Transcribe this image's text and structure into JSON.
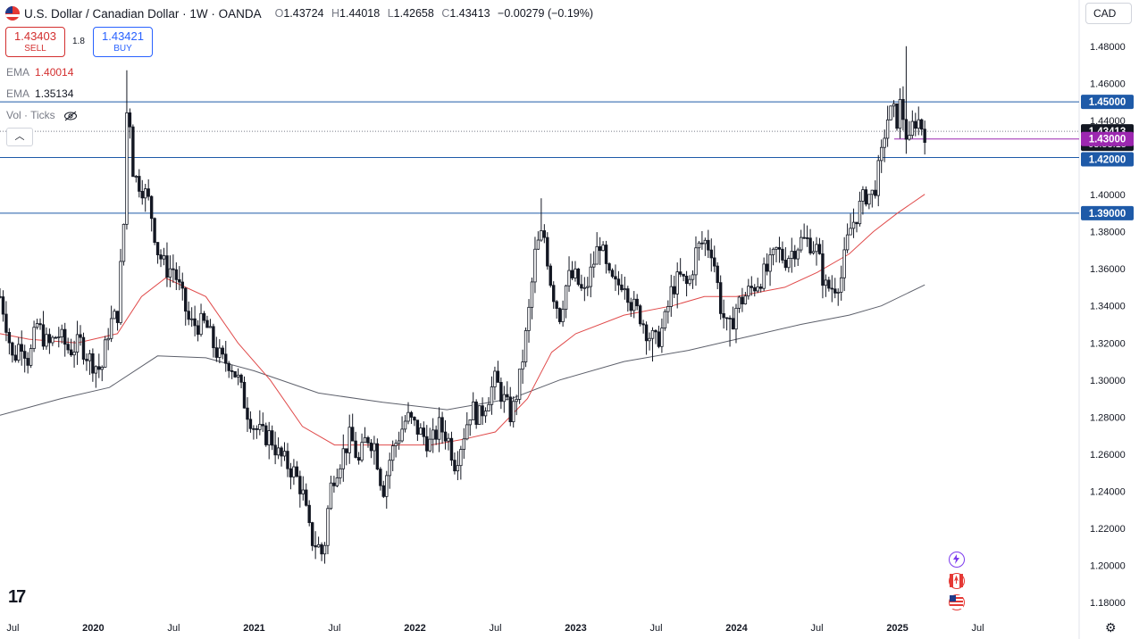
{
  "header": {
    "title": "U.S. Dollar / Canadian Dollar · 1W · OANDA",
    "ohlc": [
      {
        "k": "O",
        "v": "1.43724"
      },
      {
        "k": "H",
        "v": "1.44018"
      },
      {
        "k": "L",
        "v": "1.42658"
      },
      {
        "k": "C",
        "v": "1.43413"
      }
    ],
    "change": "−0.00279 (−0.19%)"
  },
  "trade": {
    "sell_price": "1.43403",
    "sell_label": "SELL",
    "spread": "1.8",
    "buy_price": "1.43421",
    "buy_label": "BUY"
  },
  "indicators": {
    "ema1_name": "EMA",
    "ema1_value": "1.40014",
    "ema1_color": "#e04a4a",
    "ema2_name": "EMA",
    "ema2_value": "1.35134",
    "ema2_color": "#5d606b",
    "vol_label": "Vol · Ticks"
  },
  "currency_button": "CAD",
  "logo": "17",
  "colors": {
    "up": "#131722",
    "down": "#131722",
    "hline": "#1e5aa8",
    "price_tag": "#131722",
    "pending_tag": "#9c27b0"
  },
  "chart_data": {
    "type": "candlestick",
    "symbol": "U.S. Dollar / Canadian Dollar",
    "interval": "1W",
    "source": "OANDA",
    "ylim": [
      1.17,
      1.49
    ],
    "y_ticks": [
      "1.18000",
      "1.20000",
      "1.22000",
      "1.24000",
      "1.26000",
      "1.28000",
      "1.30000",
      "1.32000",
      "1.34000",
      "1.36000",
      "1.38000",
      "1.40000",
      "1.42000",
      "1.44000",
      "1.46000",
      "1.48000"
    ],
    "x_ticks": [
      "Jul",
      "2020",
      "Jul",
      "2021",
      "Jul",
      "2022",
      "Jul",
      "2023",
      "Jul",
      "2024",
      "Jul",
      "2025",
      "Jul"
    ],
    "x_ticks_bold": [
      "2020",
      "2021",
      "2022",
      "2023",
      "2024",
      "2025"
    ],
    "x_tick_dates": [
      2019.5,
      2020.0,
      2020.5,
      2021.0,
      2021.5,
      2022.0,
      2022.5,
      2023.0,
      2023.5,
      2024.0,
      2024.5,
      2025.0,
      2025.5
    ],
    "x_range": [
      2019.42,
      2026.13
    ],
    "last_date": 2025.17,
    "horizontal_lines": [
      {
        "price": 1.45,
        "label": "1.45000"
      },
      {
        "price": 1.42,
        "label": "1.42000"
      },
      {
        "price": 1.39,
        "label": "1.39000"
      }
    ],
    "pending_line": {
      "price": 1.43,
      "label": "1.43000",
      "start_date": 2024.98
    },
    "last_price": {
      "price": 1.43413,
      "label": "1.43413",
      "countdown": "03:58:15"
    },
    "path": [
      [
        2019.42,
        1.345
      ],
      [
        2019.45,
        1.335
      ],
      [
        2019.5,
        1.31
      ],
      [
        2019.55,
        1.322
      ],
      [
        2019.6,
        1.31
      ],
      [
        2019.65,
        1.33
      ],
      [
        2019.72,
        1.318
      ],
      [
        2019.78,
        1.325
      ],
      [
        2019.85,
        1.316
      ],
      [
        2019.92,
        1.32
      ],
      [
        2019.97,
        1.312
      ],
      [
        2020.05,
        1.305
      ],
      [
        2020.1,
        1.33
      ],
      [
        2020.15,
        1.335
      ],
      [
        2020.19,
        1.385
      ],
      [
        2020.2,
        1.44
      ],
      [
        2020.22,
        1.45
      ],
      [
        2020.25,
        1.41
      ],
      [
        2020.3,
        1.405
      ],
      [
        2020.35,
        1.395
      ],
      [
        2020.4,
        1.37
      ],
      [
        2020.45,
        1.36
      ],
      [
        2020.5,
        1.36
      ],
      [
        2020.55,
        1.345
      ],
      [
        2020.6,
        1.33
      ],
      [
        2020.65,
        1.33
      ],
      [
        2020.7,
        1.33
      ],
      [
        2020.75,
        1.318
      ],
      [
        2020.8,
        1.31
      ],
      [
        2020.85,
        1.31
      ],
      [
        2020.9,
        1.3
      ],
      [
        2020.95,
        1.285
      ],
      [
        2021.0,
        1.275
      ],
      [
        2021.05,
        1.27
      ],
      [
        2021.1,
        1.27
      ],
      [
        2021.15,
        1.26
      ],
      [
        2021.2,
        1.255
      ],
      [
        2021.25,
        1.25
      ],
      [
        2021.3,
        1.24
      ],
      [
        2021.35,
        1.215
      ],
      [
        2021.4,
        1.21
      ],
      [
        2021.43,
        1.205
      ],
      [
        2021.47,
        1.24
      ],
      [
        2021.5,
        1.25
      ],
      [
        2021.55,
        1.26
      ],
      [
        2021.6,
        1.27
      ],
      [
        2021.65,
        1.255
      ],
      [
        2021.7,
        1.27
      ],
      [
        2021.75,
        1.265
      ],
      [
        2021.8,
        1.24
      ],
      [
        2021.85,
        1.26
      ],
      [
        2021.9,
        1.27
      ],
      [
        2021.95,
        1.28
      ],
      [
        2022.0,
        1.275
      ],
      [
        2022.05,
        1.27
      ],
      [
        2022.1,
        1.265
      ],
      [
        2022.15,
        1.275
      ],
      [
        2022.2,
        1.27
      ],
      [
        2022.25,
        1.255
      ],
      [
        2022.3,
        1.27
      ],
      [
        2022.35,
        1.285
      ],
      [
        2022.4,
        1.28
      ],
      [
        2022.45,
        1.29
      ],
      [
        2022.5,
        1.3
      ],
      [
        2022.55,
        1.29
      ],
      [
        2022.6,
        1.28
      ],
      [
        2022.65,
        1.3
      ],
      [
        2022.7,
        1.33
      ],
      [
        2022.75,
        1.37
      ],
      [
        2022.8,
        1.38
      ],
      [
        2022.85,
        1.35
      ],
      [
        2022.9,
        1.335
      ],
      [
        2022.95,
        1.355
      ],
      [
        2023.0,
        1.355
      ],
      [
        2023.05,
        1.345
      ],
      [
        2023.1,
        1.36
      ],
      [
        2023.15,
        1.375
      ],
      [
        2023.2,
        1.355
      ],
      [
        2023.25,
        1.35
      ],
      [
        2023.3,
        1.355
      ],
      [
        2023.35,
        1.34
      ],
      [
        2023.4,
        1.335
      ],
      [
        2023.45,
        1.325
      ],
      [
        2023.5,
        1.32
      ],
      [
        2023.55,
        1.33
      ],
      [
        2023.6,
        1.35
      ],
      [
        2023.65,
        1.355
      ],
      [
        2023.7,
        1.35
      ],
      [
        2023.75,
        1.37
      ],
      [
        2023.8,
        1.375
      ],
      [
        2023.85,
        1.37
      ],
      [
        2023.9,
        1.34
      ],
      [
        2023.95,
        1.325
      ],
      [
        2024.0,
        1.34
      ],
      [
        2024.05,
        1.345
      ],
      [
        2024.1,
        1.35
      ],
      [
        2024.15,
        1.355
      ],
      [
        2024.2,
        1.36
      ],
      [
        2024.25,
        1.37
      ],
      [
        2024.3,
        1.365
      ],
      [
        2024.35,
        1.37
      ],
      [
        2024.4,
        1.375
      ],
      [
        2024.45,
        1.375
      ],
      [
        2024.5,
        1.37
      ],
      [
        2024.55,
        1.35
      ],
      [
        2024.6,
        1.35
      ],
      [
        2024.65,
        1.355
      ],
      [
        2024.7,
        1.38
      ],
      [
        2024.75,
        1.39
      ],
      [
        2024.8,
        1.4
      ],
      [
        2024.85,
        1.4
      ],
      [
        2024.9,
        1.42
      ],
      [
        2024.93,
        1.44
      ],
      [
        2024.97,
        1.445
      ],
      [
        2025.0,
        1.44
      ],
      [
        2025.02,
        1.45
      ],
      [
        2025.05,
        1.435
      ],
      [
        2025.07,
        1.425
      ],
      [
        2025.1,
        1.44
      ],
      [
        2025.13,
        1.44
      ],
      [
        2025.17,
        1.434
      ]
    ],
    "spikes": [
      {
        "date": 2020.21,
        "high": 1.467,
        "low": 1.39
      },
      {
        "date": 2021.43,
        "low": 1.201
      },
      {
        "date": 2022.78,
        "high": 1.398
      },
      {
        "date": 2023.47,
        "low": 1.31
      },
      {
        "date": 2023.96,
        "low": 1.318
      },
      {
        "date": 2024.6,
        "low": 1.342
      },
      {
        "date": 2025.06,
        "high": 1.48,
        "low": 1.422
      }
    ],
    "ema1_path": [
      [
        2019.42,
        1.325
      ],
      [
        2019.6,
        1.322
      ],
      [
        2019.9,
        1.32
      ],
      [
        2020.15,
        1.325
      ],
      [
        2020.3,
        1.345
      ],
      [
        2020.45,
        1.355
      ],
      [
        2020.7,
        1.345
      ],
      [
        2020.9,
        1.32
      ],
      [
        2021.1,
        1.3
      ],
      [
        2021.3,
        1.275
      ],
      [
        2021.5,
        1.265
      ],
      [
        2021.7,
        1.265
      ],
      [
        2021.9,
        1.265
      ],
      [
        2022.1,
        1.265
      ],
      [
        2022.3,
        1.268
      ],
      [
        2022.5,
        1.272
      ],
      [
        2022.7,
        1.29
      ],
      [
        2022.85,
        1.315
      ],
      [
        2023.0,
        1.325
      ],
      [
        2023.3,
        1.335
      ],
      [
        2023.6,
        1.34
      ],
      [
        2023.8,
        1.345
      ],
      [
        2024.0,
        1.345
      ],
      [
        2024.3,
        1.35
      ],
      [
        2024.5,
        1.358
      ],
      [
        2024.7,
        1.368
      ],
      [
        2024.85,
        1.38
      ],
      [
        2025.0,
        1.39
      ],
      [
        2025.17,
        1.40014
      ]
    ],
    "ema2_path": [
      [
        2019.42,
        1.281
      ],
      [
        2019.8,
        1.29
      ],
      [
        2020.1,
        1.296
      ],
      [
        2020.4,
        1.313
      ],
      [
        2020.7,
        1.312
      ],
      [
        2021.0,
        1.305
      ],
      [
        2021.4,
        1.293
      ],
      [
        2021.8,
        1.288
      ],
      [
        2022.2,
        1.284
      ],
      [
        2022.6,
        1.29
      ],
      [
        2022.9,
        1.3
      ],
      [
        2023.3,
        1.31
      ],
      [
        2023.7,
        1.316
      ],
      [
        2024.0,
        1.322
      ],
      [
        2024.4,
        1.33
      ],
      [
        2024.7,
        1.335
      ],
      [
        2024.9,
        1.34
      ],
      [
        2025.17,
        1.35134
      ]
    ]
  }
}
